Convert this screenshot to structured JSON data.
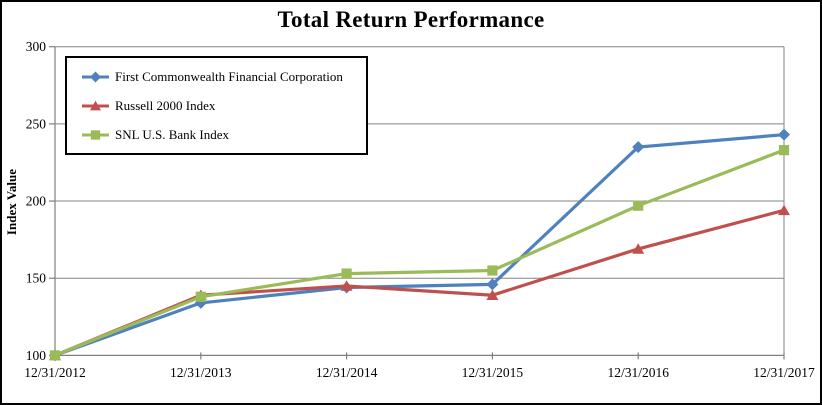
{
  "chart_data": {
    "type": "line",
    "title": "Total Return Performance",
    "ylabel": "Index Value",
    "xlabel": "",
    "x_labels": [
      "12/31/2012",
      "12/31/2013",
      "12/31/2014",
      "12/31/2015",
      "12/31/2016",
      "12/31/2017"
    ],
    "y_ticks": [
      100,
      150,
      200,
      250,
      300
    ],
    "ylim": [
      100,
      300
    ],
    "grid": true,
    "legend_position": "inside-top-left",
    "axis_color": "#808080",
    "gridline_color": "#848484",
    "text_color": "#000000",
    "background_color": "#ffffff",
    "series": [
      {
        "name": "First Commonwealth Financial Corporation",
        "color": "#4F81BD",
        "marker": "diamond",
        "values": [
          100,
          134,
          144,
          146,
          235,
          243
        ]
      },
      {
        "name": "Russell 2000 Index",
        "color": "#C0504D",
        "marker": "triangle",
        "values": [
          100,
          139,
          145,
          139,
          169,
          194
        ]
      },
      {
        "name": "SNL U.S. Bank Index",
        "color": "#9BBB59",
        "marker": "square",
        "values": [
          100,
          138,
          153,
          155,
          197,
          233
        ]
      }
    ]
  }
}
